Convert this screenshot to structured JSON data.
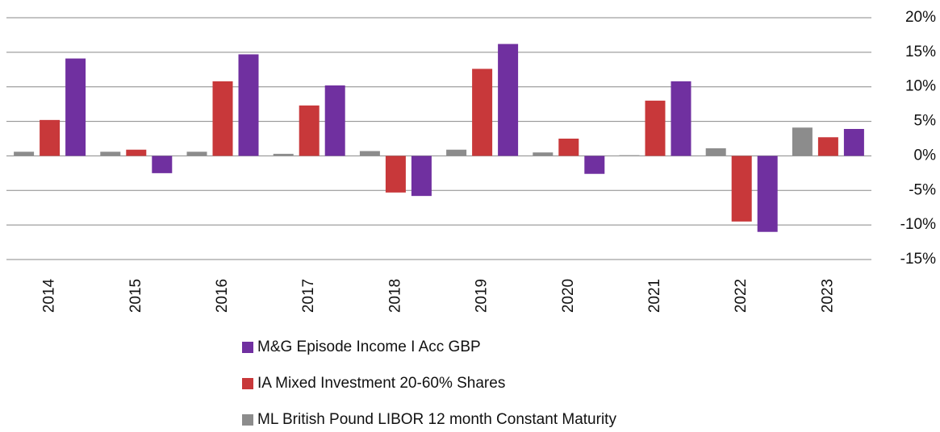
{
  "chart_data": {
    "type": "bar",
    "categories": [
      "2014",
      "2015",
      "2016",
      "2017",
      "2018",
      "2019",
      "2020",
      "2021",
      "2022",
      "2023"
    ],
    "series": [
      {
        "name": "ML British Pound LIBOR 12 month Constant Maturity",
        "color": "#8c8c8c",
        "values": [
          0.6,
          0.6,
          0.6,
          0.3,
          0.7,
          0.9,
          0.5,
          0.1,
          1.1,
          4.1
        ]
      },
      {
        "name": "IA Mixed Investment 20-60% Shares",
        "color": "#c8383a",
        "values": [
          5.2,
          0.9,
          10.8,
          7.3,
          -5.3,
          12.6,
          2.5,
          8.0,
          -9.5,
          2.7
        ]
      },
      {
        "name": "M&G Episode Income I Acc GBP",
        "color": "#7030a0",
        "values": [
          14.1,
          -2.5,
          14.7,
          10.2,
          -5.8,
          16.2,
          -2.6,
          10.8,
          -11.0,
          3.9
        ]
      }
    ],
    "ylim": [
      -15,
      20
    ],
    "yticks": [
      {
        "value": -15,
        "label": "-15%"
      },
      {
        "value": -10,
        "label": "-10%"
      },
      {
        "value": -5,
        "label": "-5%"
      },
      {
        "value": 0,
        "label": "0%"
      },
      {
        "value": 5,
        "label": "5%"
      },
      {
        "value": 10,
        "label": "10%"
      },
      {
        "value": 15,
        "label": "15%"
      },
      {
        "value": 20,
        "label": "20%"
      }
    ],
    "grid": true
  }
}
